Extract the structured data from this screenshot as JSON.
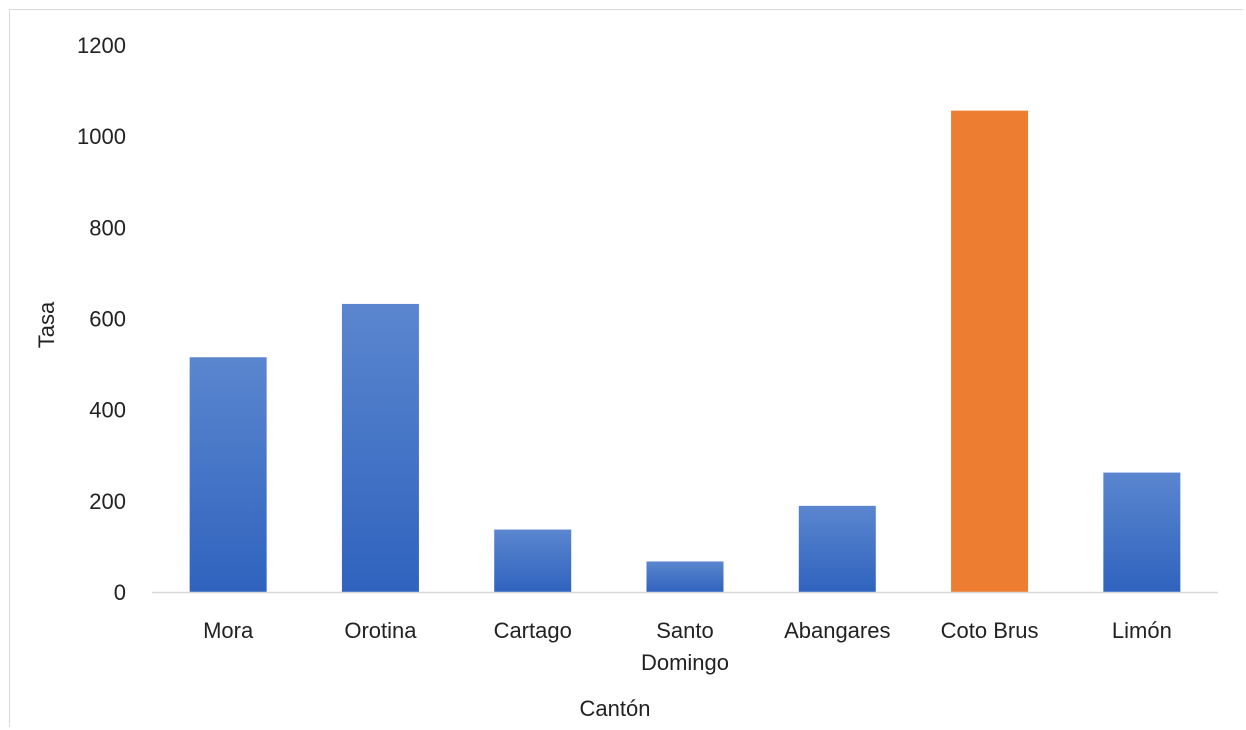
{
  "chart_data": {
    "type": "bar",
    "title": "",
    "xlabel": "Cantón",
    "ylabel": "Tasa",
    "ylim": [
      0,
      1200
    ],
    "yticks": [
      0,
      200,
      400,
      600,
      800,
      1000,
      1200
    ],
    "grid": false,
    "categories": [
      [
        "Mora"
      ],
      [
        "Orotina"
      ],
      [
        "Cartago"
      ],
      [
        "Santo",
        "Domingo"
      ],
      [
        "Abangares"
      ],
      [
        "Coto Brus"
      ],
      [
        "Limón"
      ]
    ],
    "values": [
      515,
      632,
      137,
      67,
      189,
      1056,
      262
    ],
    "colors": {
      "default_bar_top": "#5b86cf",
      "default_bar_bottom": "#2f63be",
      "highlight_bar": "#ed7d31",
      "axis": "#d9d9d9"
    },
    "highlight_index": 5
  }
}
